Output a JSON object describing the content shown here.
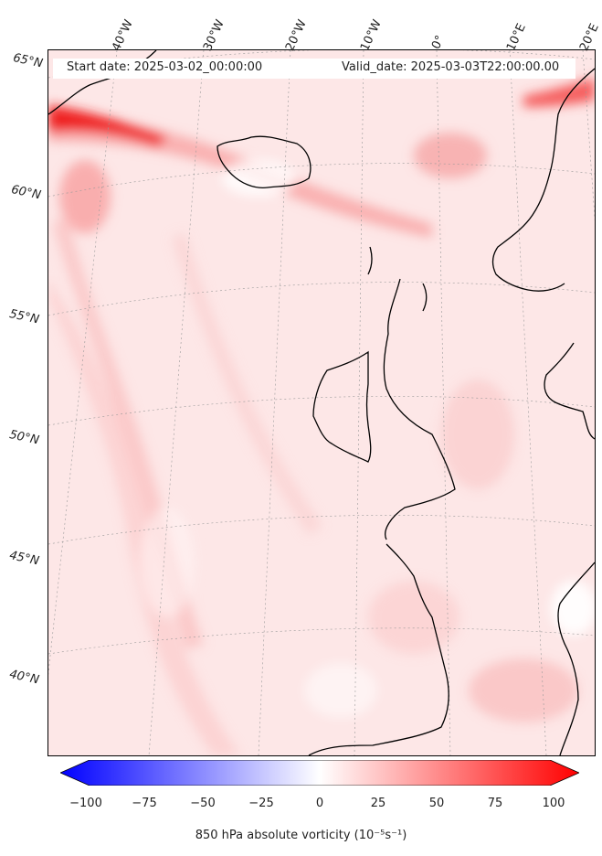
{
  "header": {
    "start_date": "Start date: 2025-03-02_00:00:00",
    "valid_date": "Valid_date: 2025-03-03T22:00:00.00"
  },
  "map": {
    "projection": "conic",
    "background_color": "#fde7e7",
    "coastline_color": "#000000",
    "longitude_labels": [
      "40°W",
      "30°W",
      "20°W",
      "10°W",
      "0°",
      "10°E",
      "20°E"
    ],
    "latitude_labels": [
      "65°N",
      "60°N",
      "55°N",
      "50°N",
      "45°N",
      "40°N"
    ]
  },
  "colorbar": {
    "label": "850 hPa absolute vorticity (10⁻⁵s⁻¹)",
    "ticks": [
      "−100",
      "−75",
      "−50",
      "−25",
      "0",
      "25",
      "50",
      "75",
      "100"
    ],
    "min": -100,
    "max": 100,
    "colormap": "bwr",
    "extend": "both"
  }
}
